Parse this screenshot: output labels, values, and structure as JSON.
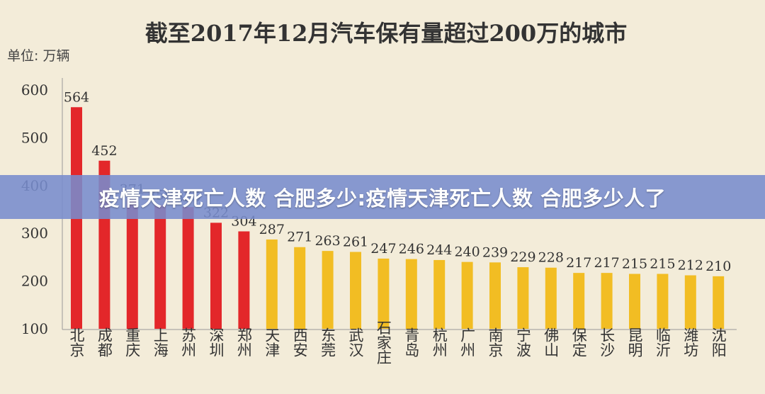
{
  "overlay_banner": "疫情天津死亡人数 合肥多少:疫情天津死亡人数 合肥多少人了",
  "colors": {
    "red": "#e3272a",
    "orange": "#f2bd23",
    "background": "#f3ecd9",
    "text": "#333333"
  },
  "chart_data": {
    "type": "bar",
    "title": "截至2017年12月汽车保有量超过200万的城市",
    "unit_label": "单位:  万辆",
    "ylim": [
      100,
      600
    ],
    "yticks": [
      100,
      200,
      300,
      400,
      500,
      600
    ],
    "grid": false,
    "categories": [
      "北京",
      "成都",
      "重庆",
      "上海",
      "苏州",
      "深圳",
      "郑州",
      "天津",
      "西安",
      "东莞",
      "武汉",
      "石家庄",
      "青岛",
      "杭州",
      "广州",
      "南京",
      "宁波",
      "佛山",
      "保定",
      "长沙",
      "昆明",
      "临沂",
      "潍坊",
      "沈阳"
    ],
    "values": [
      564,
      452,
      371,
      359,
      355,
      322,
      304,
      287,
      271,
      263,
      261,
      247,
      246,
      244,
      240,
      239,
      229,
      228,
      217,
      217,
      215,
      215,
      212,
      210
    ],
    "value_labels": [
      "564",
      "452",
      "371",
      "359",
      "355",
      "322",
      "304",
      "287",
      "271",
      "263",
      "261",
      "247",
      "246",
      "244",
      "240",
      "239",
      "229",
      "228",
      "217",
      "217",
      "215",
      "215",
      "212",
      "210"
    ],
    "bar_colors": [
      "#e3272a",
      "#e3272a",
      "#e3272a",
      "#e3272a",
      "#e3272a",
      "#e3272a",
      "#e3272a",
      "#f2bd23",
      "#f2bd23",
      "#f2bd23",
      "#f2bd23",
      "#f2bd23",
      "#f2bd23",
      "#f2bd23",
      "#f2bd23",
      "#f2bd23",
      "#f2bd23",
      "#f2bd23",
      "#f2bd23",
      "#f2bd23",
      "#f2bd23",
      "#f2bd23",
      "#f2bd23",
      "#f2bd23"
    ]
  }
}
